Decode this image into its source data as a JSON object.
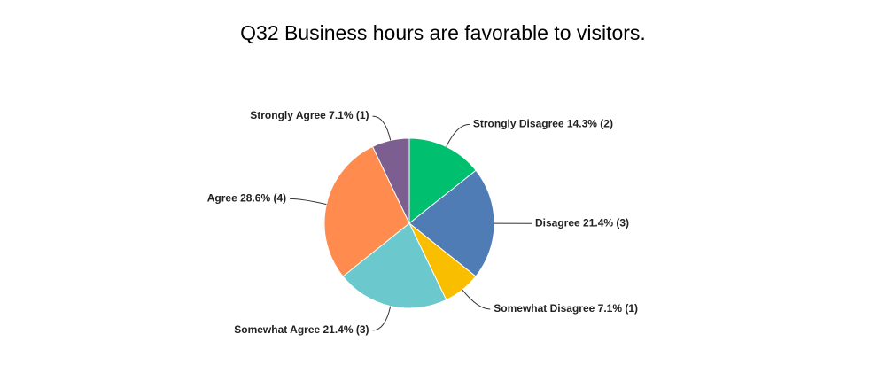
{
  "chart_data": {
    "type": "pie",
    "title": "Q32 Business hours are favorable to visitors.",
    "values": [
      14.3,
      21.4,
      7.1,
      21.4,
      28.6,
      7.1
    ],
    "value_labels": [
      "Strongly Disagree 14.3% (2)",
      "Disagree 21.4% (3)",
      "Somewhat Disagree 7.1% (1)",
      "Somewhat Agree 21.4% (3)",
      "Agree 28.6% (4)",
      "Strongly Agree 7.1% (1)"
    ],
    "colors": [
      "#00bf6f",
      "#507cb6",
      "#f9be00",
      "#6bc8cd",
      "#ff8b4f",
      "#7d5e90"
    ]
  }
}
